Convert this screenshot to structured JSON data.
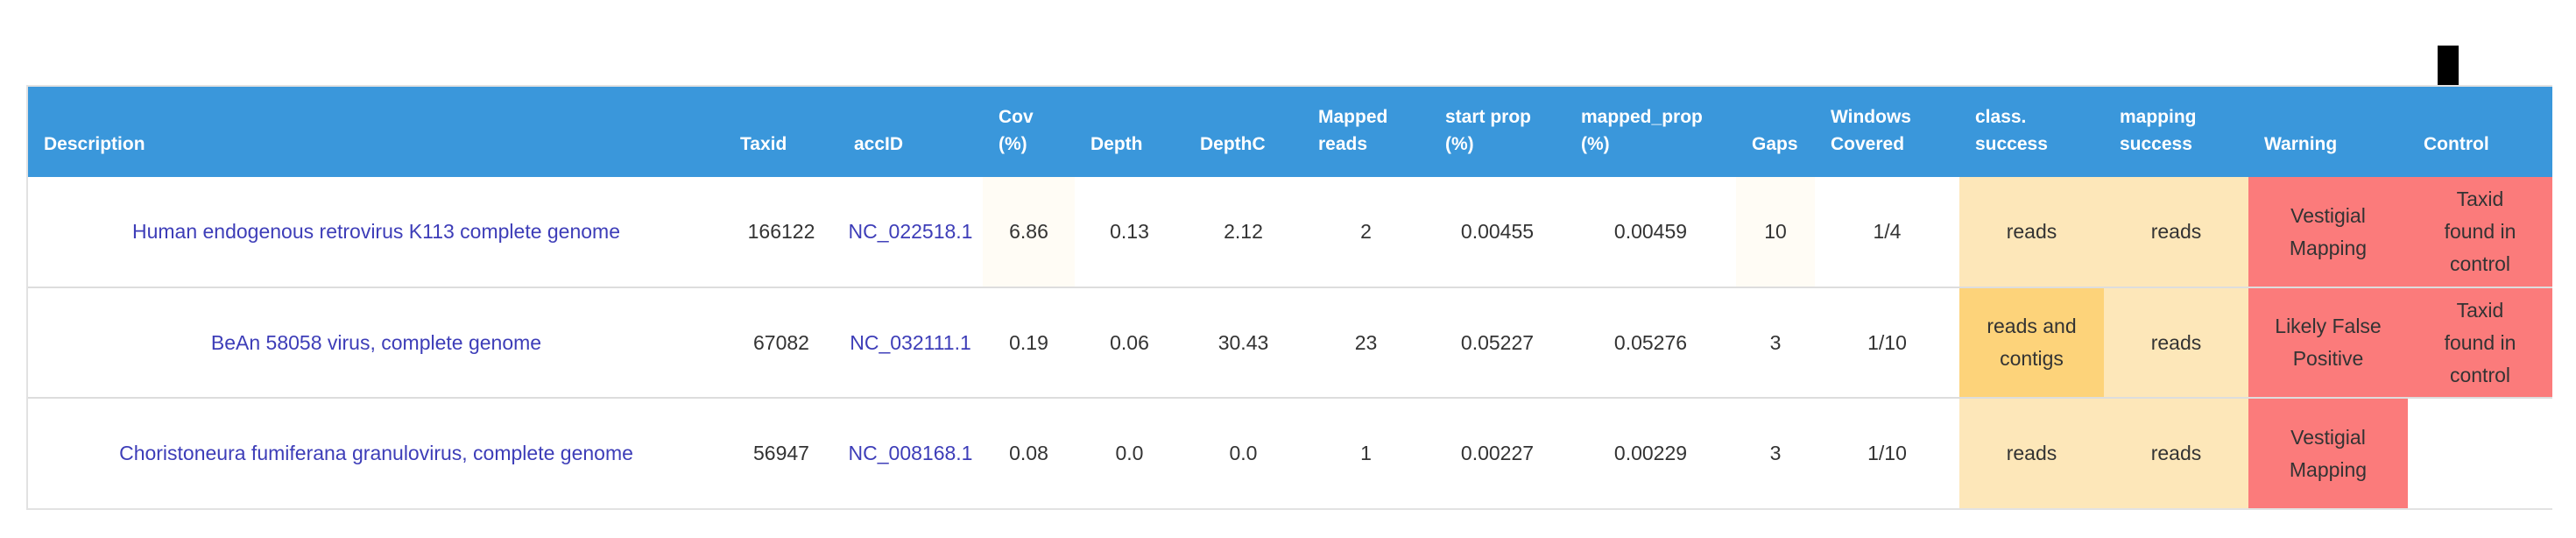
{
  "columns": [
    "Description",
    "Taxid",
    "accID",
    "Cov\n(%)",
    "Depth",
    "DepthC",
    "Mapped\nreads",
    "start prop\n(%)",
    "mapped_prop\n(%)",
    "Gaps",
    "Windows\nCovered",
    "class.\nsuccess",
    "mapping\nsuccess",
    "Warning",
    "Control"
  ],
  "rows": [
    {
      "description": "Human endogenous retrovirus K113 complete genome",
      "taxid": "166122",
      "accid": "NC_022518.1",
      "cov": "6.86",
      "depth": "0.13",
      "depthc": "2.12",
      "mapped_reads": "2",
      "start_prop": "0.00455",
      "mapped_prop": "0.00459",
      "gaps": "10",
      "windows": "1/4",
      "class_success": "reads",
      "mapping_success": "reads",
      "warning": "Vestigial\nMapping",
      "control": "Taxid\nfound in\ncontrol"
    },
    {
      "description": "BeAn 58058 virus, complete genome",
      "taxid": "67082",
      "accid": "NC_032111.1",
      "cov": "0.19",
      "depth": "0.06",
      "depthc": "30.43",
      "mapped_reads": "23",
      "start_prop": "0.05227",
      "mapped_prop": "0.05276",
      "gaps": "3",
      "windows": "1/10",
      "class_success": "reads and\ncontigs",
      "mapping_success": "reads",
      "warning": "Likely False\nPositive",
      "control": "Taxid\nfound in\ncontrol"
    },
    {
      "description": "Choristoneura fumiferana granulovirus, complete genome",
      "taxid": "56947",
      "accid": "NC_008168.1",
      "cov": "0.08",
      "depth": "0.0",
      "depthc": "0.0",
      "mapped_reads": "1",
      "start_prop": "0.00227",
      "mapped_prop": "0.00229",
      "gaps": "3",
      "windows": "1/10",
      "class_success": "reads",
      "mapping_success": "reads",
      "warning": "Vestigial\nMapping",
      "control": ""
    }
  ],
  "colors": {
    "header_bg": "#3a97db",
    "link": "#3d3db8",
    "success_reads": "#fde7b9",
    "success_reads_and_contigs": "#fdd37a",
    "warning_bg": "#fb7b7b"
  },
  "icons": {
    "control_indicator": "down-arrow-icon"
  }
}
